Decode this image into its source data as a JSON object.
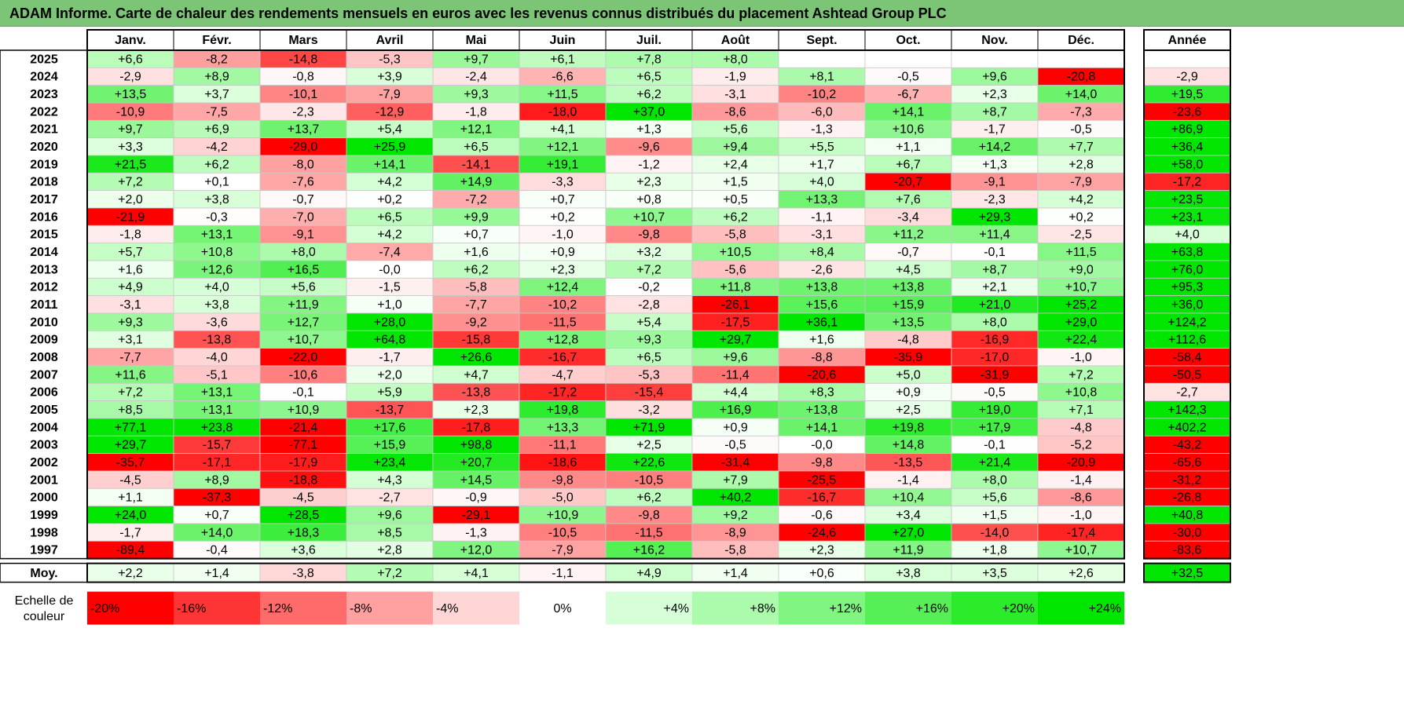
{
  "title": "ADAM Informe. Carte de chaleur des rendements mensuels en euros avec les revenus connus distribués du placement Ashtead Group PLC",
  "chart_data": {
    "type": "heatmap",
    "months": [
      "Janv.",
      "Févr.",
      "Mars",
      "Avril",
      "Mai",
      "Juin",
      "Juil.",
      "Août",
      "Sept.",
      "Oct.",
      "Nov.",
      "Déc."
    ],
    "year_header": "Année",
    "rows": [
      {
        "year": "2025",
        "values": [
          "+6,6",
          "-8,2",
          "-14,8",
          "-5,3",
          "+9,7",
          "+6,1",
          "+7,8",
          "+8,0",
          "",
          "",
          "",
          ""
        ],
        "annual": ""
      },
      {
        "year": "2024",
        "values": [
          "-2,9",
          "+8,9",
          "-0,8",
          "+3,9",
          "-2,4",
          "-6,6",
          "+6,5",
          "-1,9",
          "+8,1",
          "-0,5",
          "+9,6",
          "-20,8"
        ],
        "annual": "-2,9"
      },
      {
        "year": "2023",
        "values": [
          "+13,5",
          "+3,7",
          "-10,1",
          "-7,9",
          "+9,3",
          "+11,5",
          "+6,2",
          "-3,1",
          "-10,2",
          "-6,7",
          "+2,3",
          "+14,0"
        ],
        "annual": "+19,5"
      },
      {
        "year": "2022",
        "values": [
          "-10,9",
          "-7,5",
          "-2,3",
          "-12,9",
          "-1,8",
          "-18,0",
          "+37,0",
          "-8,6",
          "-6,0",
          "+14,1",
          "+8,7",
          "-7,3"
        ],
        "annual": "-23,6"
      },
      {
        "year": "2021",
        "values": [
          "+9,7",
          "+6,9",
          "+13,7",
          "+5,4",
          "+12,1",
          "+4,1",
          "+1,3",
          "+5,6",
          "-1,3",
          "+10,6",
          "-1,7",
          "-0,5"
        ],
        "annual": "+86,9"
      },
      {
        "year": "2020",
        "values": [
          "+3,3",
          "-4,2",
          "-29,0",
          "+25,9",
          "+6,5",
          "+12,1",
          "-9,6",
          "+9,4",
          "+5,5",
          "+1,1",
          "+14,2",
          "+7,7"
        ],
        "annual": "+36,4"
      },
      {
        "year": "2019",
        "values": [
          "+21,5",
          "+6,2",
          "-8,0",
          "+14,1",
          "-14,1",
          "+19,1",
          "-1,2",
          "+2,4",
          "+1,7",
          "+6,7",
          "+1,3",
          "+2,8"
        ],
        "annual": "+58,0"
      },
      {
        "year": "2018",
        "values": [
          "+7,2",
          "+0,1",
          "-7,6",
          "+4,2",
          "+14,9",
          "-3,3",
          "+2,3",
          "+1,5",
          "+4,0",
          "-20,7",
          "-9,1",
          "-7,9"
        ],
        "annual": "-17,2"
      },
      {
        "year": "2017",
        "values": [
          "+2,0",
          "+3,8",
          "-0,7",
          "+0,2",
          "-7,2",
          "+0,7",
          "+0,8",
          "+0,5",
          "+13,3",
          "+7,6",
          "-2,3",
          "+4,2"
        ],
        "annual": "+23,5"
      },
      {
        "year": "2016",
        "values": [
          "-21,9",
          "-0,3",
          "-7,0",
          "+6,5",
          "+9,9",
          "+0,2",
          "+10,7",
          "+6,2",
          "-1,1",
          "-3,4",
          "+29,3",
          "+0,2"
        ],
        "annual": "+23,1"
      },
      {
        "year": "2015",
        "values": [
          "-1,8",
          "+13,1",
          "-9,1",
          "+4,2",
          "+0,7",
          "-1,0",
          "-9,8",
          "-5,8",
          "-3,1",
          "+11,2",
          "+11,4",
          "-2,5"
        ],
        "annual": "+4,0"
      },
      {
        "year": "2014",
        "values": [
          "+5,7",
          "+10,8",
          "+8,0",
          "-7,4",
          "+1,6",
          "+0,9",
          "+3,2",
          "+10,5",
          "+8,4",
          "-0,7",
          "-0,1",
          "+11,5"
        ],
        "annual": "+63,8"
      },
      {
        "year": "2013",
        "values": [
          "+1,6",
          "+12,6",
          "+16,5",
          "-0,0",
          "+6,2",
          "+2,3",
          "+7,2",
          "-5,6",
          "-2,6",
          "+4,5",
          "+8,7",
          "+9,0"
        ],
        "annual": "+76,0"
      },
      {
        "year": "2012",
        "values": [
          "+4,9",
          "+4,0",
          "+5,6",
          "-1,5",
          "-5,8",
          "+12,4",
          "-0,2",
          "+11,8",
          "+13,8",
          "+13,8",
          "+2,1",
          "+10,7"
        ],
        "annual": "+95,3"
      },
      {
        "year": "2011",
        "values": [
          "-3,1",
          "+3,8",
          "+11,9",
          "+1,0",
          "-7,7",
          "-10,2",
          "-2,8",
          "-26,1",
          "+15,6",
          "+15,9",
          "+21,0",
          "+25,2"
        ],
        "annual": "+36,0"
      },
      {
        "year": "2010",
        "values": [
          "+9,3",
          "-3,6",
          "+12,7",
          "+28,0",
          "-9,2",
          "-11,5",
          "+5,4",
          "-17,5",
          "+36,1",
          "+13,5",
          "+8,0",
          "+29,0"
        ],
        "annual": "+124,2"
      },
      {
        "year": "2009",
        "values": [
          "+3,1",
          "-13,8",
          "+10,7",
          "+64,8",
          "-15,8",
          "+12,8",
          "+9,3",
          "+29,7",
          "+1,6",
          "-4,8",
          "-16,9",
          "+22,4"
        ],
        "annual": "+112,6"
      },
      {
        "year": "2008",
        "values": [
          "-7,7",
          "-4,0",
          "-22,0",
          "-1,7",
          "+26,6",
          "-16,7",
          "+6,5",
          "+9,6",
          "-8,8",
          "-35,9",
          "-17,0",
          "-1,0"
        ],
        "annual": "-58,4"
      },
      {
        "year": "2007",
        "values": [
          "+11,6",
          "-5,1",
          "-10,6",
          "+2,0",
          "+4,7",
          "-4,7",
          "-5,3",
          "-11,4",
          "-20,6",
          "+5,0",
          "-31,9",
          "+7,2"
        ],
        "annual": "-50,5"
      },
      {
        "year": "2006",
        "values": [
          "+7,2",
          "+13,1",
          "-0,1",
          "+5,9",
          "-13,8",
          "-17,2",
          "-15,4",
          "+4,4",
          "+8,3",
          "+0,9",
          "-0,5",
          "+10,8"
        ],
        "annual": "-2,7"
      },
      {
        "year": "2005",
        "values": [
          "+8,5",
          "+13,1",
          "+10,9",
          "-13,7",
          "+2,3",
          "+19,8",
          "-3,2",
          "+16,9",
          "+13,8",
          "+2,5",
          "+19,0",
          "+7,1"
        ],
        "annual": "+142,3"
      },
      {
        "year": "2004",
        "values": [
          "+77,1",
          "+23,8",
          "-21,4",
          "+17,6",
          "-17,8",
          "+13,3",
          "+71,9",
          "+0,9",
          "+14,1",
          "+19,8",
          "+17,9",
          "-4,8"
        ],
        "annual": "+402,2"
      },
      {
        "year": "2003",
        "values": [
          "+29,7",
          "-15,7",
          "-77,1",
          "+15,9",
          "+98,8",
          "-11,1",
          "+2,5",
          "-0,5",
          "-0,0",
          "+14,8",
          "-0,1",
          "-5,2"
        ],
        "annual": "-43,2"
      },
      {
        "year": "2002",
        "values": [
          "-35,7",
          "-17,1",
          "-17,9",
          "+23,4",
          "+20,7",
          "-18,6",
          "+22,6",
          "-31,4",
          "-9,8",
          "-13,5",
          "+21,4",
          "-20,9"
        ],
        "annual": "-65,6"
      },
      {
        "year": "2001",
        "values": [
          "-4,5",
          "+8,9",
          "-18,8",
          "+4,3",
          "+14,5",
          "-9,8",
          "-10,5",
          "+7,9",
          "-25,5",
          "-1,4",
          "+8,0",
          "-1,4"
        ],
        "annual": "-31,2"
      },
      {
        "year": "2000",
        "values": [
          "+1,1",
          "-37,3",
          "-4,5",
          "-2,7",
          "-0,9",
          "-5,0",
          "+6,2",
          "+40,2",
          "-16,7",
          "+10,4",
          "+5,6",
          "-8,6"
        ],
        "annual": "-26,8"
      },
      {
        "year": "1999",
        "values": [
          "+24,0",
          "+0,7",
          "+28,5",
          "+9,6",
          "-29,1",
          "+10,9",
          "-9,8",
          "+9,2",
          "-0,6",
          "+3,4",
          "+1,5",
          "-1,0"
        ],
        "annual": "+40,8"
      },
      {
        "year": "1998",
        "values": [
          "-1,7",
          "+14,0",
          "+18,3",
          "+8,5",
          "-1,3",
          "-10,5",
          "-11,5",
          "-8,9",
          "-24,6",
          "+27,0",
          "-14,0",
          "-17,4"
        ],
        "annual": "-30,0"
      },
      {
        "year": "1997",
        "values": [
          "-89,4",
          "-0,4",
          "+3,6",
          "+2,8",
          "+12,0",
          "-7,9",
          "+16,2",
          "-5,8",
          "+2,3",
          "+11,9",
          "+1,8",
          "+10,7"
        ],
        "annual": "-83,6"
      }
    ],
    "average": {
      "label": "Moy.",
      "values": [
        "+2,2",
        "+1,4",
        "-3,8",
        "+7,2",
        "+4,1",
        "-1,1",
        "+4,9",
        "+1,4",
        "+0,6",
        "+3,8",
        "+3,5",
        "+2,6"
      ],
      "annual": "+32,5"
    },
    "scale": {
      "label_line1": "Echelle de",
      "label_line2": "couleur",
      "stops": [
        "-20%",
        "-16%",
        "-12%",
        "-8%",
        "-4%",
        "0%",
        "+4%",
        "+8%",
        "+12%",
        "+16%",
        "+20%",
        "+24%"
      ]
    }
  }
}
